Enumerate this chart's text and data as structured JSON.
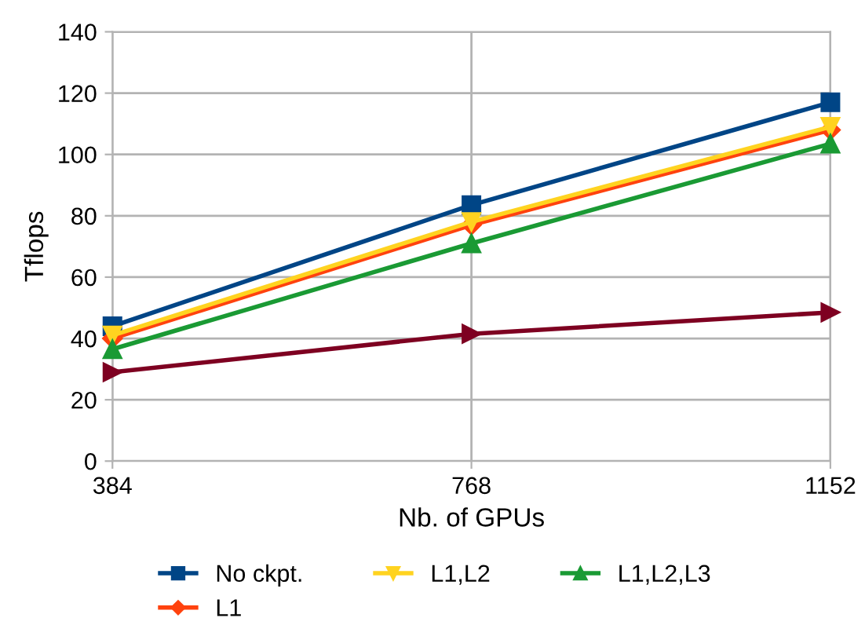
{
  "chart_data": {
    "type": "line",
    "xlabel": "Nb. of GPUs",
    "ylabel": "Tflops",
    "x": [
      384,
      768,
      1152
    ],
    "xlim": [
      384,
      1152
    ],
    "xticks": [
      384,
      768,
      1152
    ],
    "ylim": [
      0,
      140
    ],
    "yticks": [
      0,
      20,
      40,
      60,
      80,
      100,
      120,
      140
    ],
    "grid": true,
    "legend": "bottom",
    "series": [
      {
        "name": "No ckpt.",
        "color": "#004586",
        "marker": "square",
        "values": [
          44,
          83.5,
          117
        ]
      },
      {
        "name": "L1",
        "color": "#ff420e",
        "marker": "diamond",
        "values": [
          40,
          77,
          108
        ]
      },
      {
        "name": "L1,L2",
        "color": "#ffd320",
        "marker": "triangle_down",
        "values": [
          41,
          78,
          109
        ]
      },
      {
        "name": "L1,L2,L3",
        "color": "#1a9a34",
        "marker": "triangle",
        "values": [
          36.5,
          71,
          103.5
        ]
      },
      {
        "color": "#7e0021",
        "marker": "triangle_right",
        "values": [
          29,
          41.5,
          48.5
        ]
      }
    ]
  }
}
